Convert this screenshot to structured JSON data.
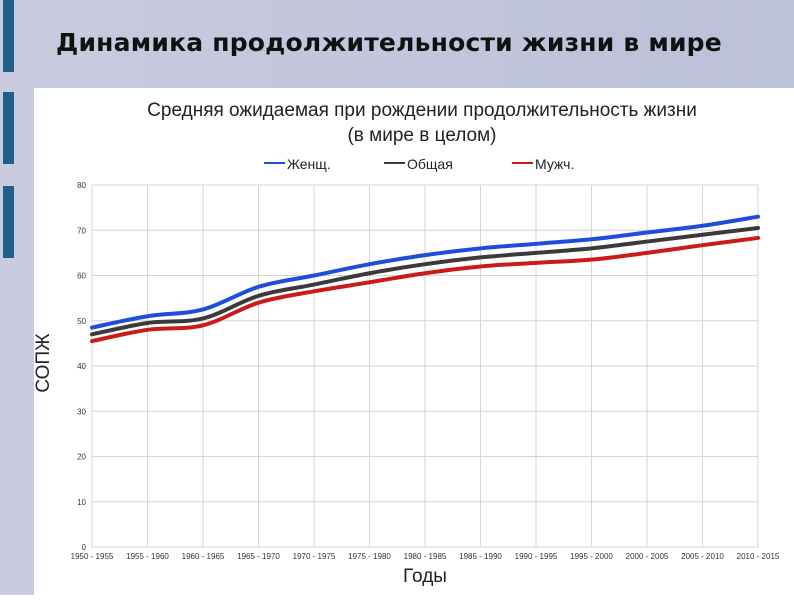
{
  "slide": {
    "title": "Динамика продолжительности жизни в мире"
  },
  "colors": {
    "accent": "#1f5f8a",
    "background": "#c4c6dc",
    "female": "#1f4ddb",
    "total": "#3a3a3a",
    "male": "#cc1a1a"
  },
  "chart_data": {
    "type": "line",
    "title": "Средняя ожидаемая при рождении продолжительность жизни",
    "subtitle": "(в мире в целом)",
    "xlabel": "Годы",
    "ylabel": "СОПЖ",
    "ylim": [
      0,
      80
    ],
    "yticks": [
      0,
      10,
      20,
      30,
      40,
      50,
      60,
      70,
      80
    ],
    "grid": true,
    "legend_position": "top-center",
    "categories": [
      "1950 - 1955",
      "1955 - 1960",
      "1960 - 1965",
      "1965 - 1970",
      "1970 - 1975",
      "1975 - 1980",
      "1980 - 1985",
      "1985 - 1990",
      "1990 - 1995",
      "1995 - 2000",
      "2000 - 2005",
      "2005 - 2010",
      "2010 - 2015"
    ],
    "series": [
      {
        "name": "Женщ.",
        "color": "#1f4ddb",
        "values": [
          48.5,
          51.0,
          52.5,
          57.5,
          60.0,
          62.5,
          64.5,
          66.0,
          67.0,
          68.0,
          69.5,
          71.0,
          73.0
        ]
      },
      {
        "name": "Общая",
        "color": "#3a3a3a",
        "values": [
          47.0,
          49.5,
          50.5,
          55.5,
          58.0,
          60.5,
          62.5,
          64.0,
          65.0,
          66.0,
          67.5,
          69.0,
          70.5
        ]
      },
      {
        "name": "Мужч.",
        "color": "#cc1a1a",
        "values": [
          45.5,
          48.0,
          49.0,
          54.0,
          56.5,
          58.5,
          60.5,
          62.0,
          62.8,
          63.5,
          65.0,
          66.7,
          68.3
        ]
      }
    ]
  }
}
